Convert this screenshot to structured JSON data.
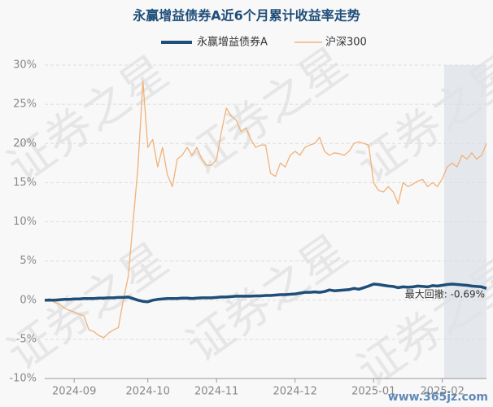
{
  "chart_data": {
    "type": "line",
    "title": "永赢增益债券A近6个月累计收益率走势",
    "categories": [
      null,
      null,
      null,
      null,
      null,
      null,
      "2024-09",
      null,
      null,
      null,
      null,
      null,
      null,
      null,
      null,
      null,
      null,
      null,
      null,
      null,
      null,
      "2024-10",
      null,
      null,
      null,
      null,
      null,
      null,
      null,
      null,
      null,
      null,
      null,
      null,
      null,
      "2024-11",
      null,
      null,
      null,
      null,
      null,
      null,
      null,
      null,
      null,
      null,
      null,
      null,
      null,
      null,
      null,
      "2024-12",
      null,
      null,
      null,
      null,
      null,
      null,
      null,
      null,
      null,
      null,
      null,
      null,
      null,
      null,
      null,
      "2025-01",
      null,
      null,
      null,
      null,
      null,
      null,
      null,
      null,
      null,
      null,
      null,
      null,
      null,
      "2025-02",
      null,
      null,
      null,
      null,
      null,
      null,
      null,
      null,
      null
    ],
    "series": [
      {
        "name": "永赢增益债券A",
        "color": "#1f4e79",
        "values": [
          0,
          0,
          0,
          0.05,
          0.1,
          0.1,
          0.15,
          0.15,
          0.2,
          0.2,
          0.2,
          0.25,
          0.25,
          0.3,
          0.3,
          0.35,
          0.35,
          0.4,
          0.2,
          0,
          -0.15,
          -0.2,
          0,
          0.1,
          0.15,
          0.2,
          0.2,
          0.2,
          0.25,
          0.25,
          0.2,
          0.25,
          0.3,
          0.3,
          0.3,
          0.35,
          0.4,
          0.4,
          0.45,
          0.5,
          0.5,
          0.5,
          0.5,
          0.55,
          0.55,
          0.6,
          0.6,
          0.65,
          0.7,
          0.7,
          0.75,
          0.8,
          0.9,
          1.0,
          1.0,
          1.05,
          1.0,
          1.1,
          1.3,
          1.2,
          1.25,
          1.3,
          1.35,
          1.5,
          1.4,
          1.6,
          1.8,
          2.05,
          2.0,
          1.9,
          1.8,
          1.75,
          1.6,
          1.7,
          1.65,
          1.7,
          1.8,
          1.75,
          1.7,
          1.85,
          1.8,
          1.9,
          2.0,
          2.05,
          2.0,
          1.95,
          1.9,
          1.8,
          1.75,
          1.7,
          1.5
        ]
      },
      {
        "name": "沪深300",
        "color": "#f0b27a",
        "values": [
          0,
          0.2,
          -0.3,
          -0.5,
          -1,
          -1.3,
          -1.5,
          -1.8,
          -2,
          -3.8,
          -4,
          -4.5,
          -4.8,
          -4.2,
          -3.8,
          -3.5,
          0,
          3,
          10,
          17,
          28,
          19.5,
          20.5,
          17,
          19.5,
          16,
          14.5,
          18,
          18.5,
          19.5,
          18.5,
          19.5,
          18,
          17.2,
          17.2,
          18,
          21.5,
          24.5,
          23.5,
          23,
          21.5,
          22,
          20.5,
          19.5,
          19.8,
          19.8,
          16.2,
          15.8,
          17.5,
          17,
          18.5,
          19,
          18.5,
          19.5,
          19.8,
          20,
          20.8,
          19,
          18.5,
          18.8,
          18.7,
          18.5,
          19,
          20,
          20.2,
          20,
          19.8,
          15,
          14,
          13.8,
          14.5,
          13.8,
          12.3,
          15,
          14.5,
          14.8,
          15.2,
          15.4,
          14.5,
          15,
          14.5,
          15.5,
          17,
          17.5,
          17,
          18.5,
          18,
          18.8,
          18,
          18.5,
          20
        ]
      }
    ],
    "ylim": [
      -10,
      30
    ],
    "yticks": [
      {
        "value": -10,
        "label": "-10%"
      },
      {
        "value": -5,
        "label": "-5%"
      },
      {
        "value": 0,
        "label": "0%"
      },
      {
        "value": 5,
        "label": "5%"
      },
      {
        "value": 10,
        "label": "10%"
      },
      {
        "value": 15,
        "label": "15%"
      },
      {
        "value": 20,
        "label": "20%"
      },
      {
        "value": 25,
        "label": "25%"
      },
      {
        "value": 30,
        "label": "30%"
      }
    ],
    "grid": true,
    "annotation": "最大回撤: -0.69%",
    "watermark": "证券之星",
    "site_watermark": "www.365jz.com"
  }
}
